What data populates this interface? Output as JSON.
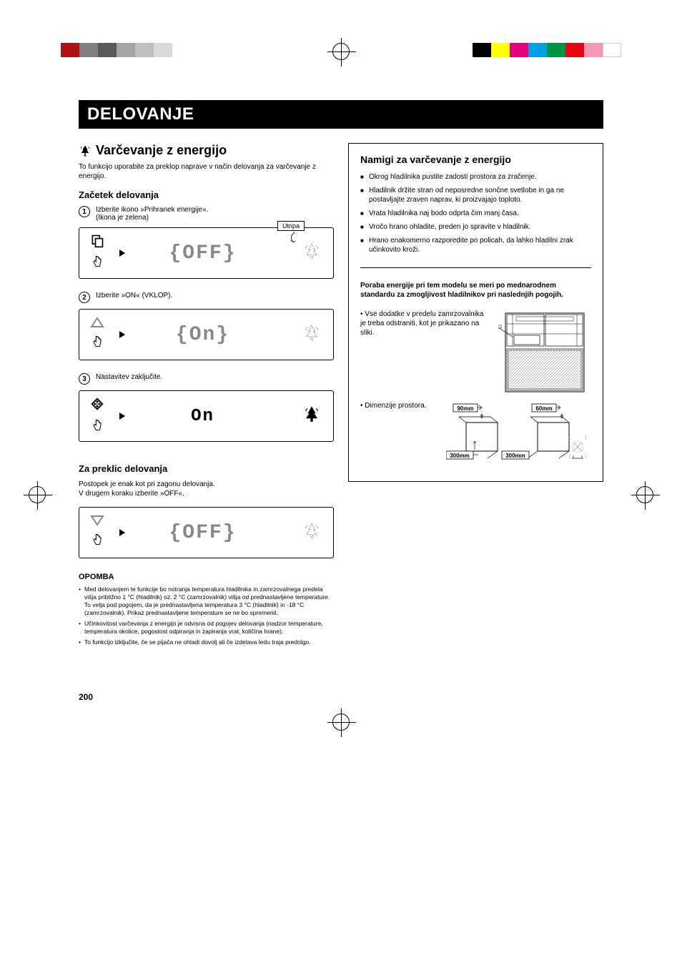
{
  "colorbar_left": [
    "#b01116",
    "#808080",
    "#595959",
    "#a6a6a6",
    "#bfbfbf",
    "#d9d9d9"
  ],
  "colorbar_right": [
    "#000000",
    "#ffff00",
    "#e6007e",
    "#00a0e3",
    "#009640",
    "#e30613",
    "#f39ab2",
    "#ffffff"
  ],
  "title": "DELOVANJE",
  "section_icon_name": "eco-tree-icon",
  "section_title": "Varčevanje z energijo",
  "intro": "To funkcijo uporabite za preklop naprave v način delovanja za varčevanje z energijo.",
  "start_heading": "Začetek delovanja",
  "steps": [
    {
      "num": "1",
      "text": "Izberite ikono »Prihranek energije«.\n(Ikona je zelena)",
      "display": "OFF",
      "flicker": "Utripa",
      "left_icon": "copy",
      "right_icon": "tree-dotted"
    },
    {
      "num": "2",
      "text": "Izberite »ON« (VKLOP).",
      "display": "On",
      "left_icon": "up-triangle",
      "right_icon": "tree-dotted"
    },
    {
      "num": "3",
      "text": "Nastavitev zaključite.",
      "display": "On",
      "display_style": "solid",
      "left_icon": "diamond-arrows",
      "right_icon": "tree-solid"
    }
  ],
  "cancel_heading": "Za preklic delovanja",
  "cancel_text": "Postopek je enak kot pri zagonu delovanja.\nV drugem koraku izberite »OFF«.",
  "cancel_panel": {
    "display": "OFF",
    "left_icon": "down-triangle",
    "right_icon": "tree-dotted"
  },
  "note_heading": "OPOMBA",
  "notes": [
    "Med delovanjem te funkcije bo notranja temperatura hladilnika in zamrzovalnega predela višja približno 1 °C (hladilnik) oz. 2 °C (zamrzovalnik) višja od prednastavljene temperature. To velja pod pogojem, da je prednastavljena temperatura 3 °C (hladilnik) in -18 °C (zamrzovalnik). Prikaz prednastavljene temperature se ne bo spremenil.",
    "Učinkovitost varčevanja z energijo je odvisna od pogojev delovanja (nadzor temperature, temperatura okolice, pogostost odpiranja in zapiranja vrat, količina hrane).",
    "To funkcijo izključite, če se pijača ne ohladi dovolj ali če izdelava ledu traja predolgo."
  ],
  "tips": {
    "title": "Namigi za varčevanje z energijo",
    "items": [
      "Okrog hladilnika pustite zadosti prostora za zračenje.",
      "Hladilnik držite stran od neposredne sončne svetlobe in ga ne postavljajte zraven naprav, ki proizvajajo toploto.",
      "Vrata hladilnika naj bodo odprta čim manj časa.",
      "Vročo hrano ohladite, preden jo spravite v hladilnik.",
      "Hrano enakomerno razporedite po policah, da lahko hladilni zrak učinkovito kroži."
    ],
    "sub": "Poraba energije pri tem modelu se meri po mednarodnem standardu za zmogljivost hladilnikov pri naslednjih pogojih.",
    "cond1": "Vse dodatke v predelu zamrzovalnika je treba odstraniti, kot je prikazano na sliki.",
    "cond2": "Dimenzije prostora.",
    "dims": {
      "top_left": "90mm",
      "top_right": "60mm",
      "bottom_left": "300mm",
      "bottom_right": "300mm"
    }
  },
  "page_number": "200"
}
